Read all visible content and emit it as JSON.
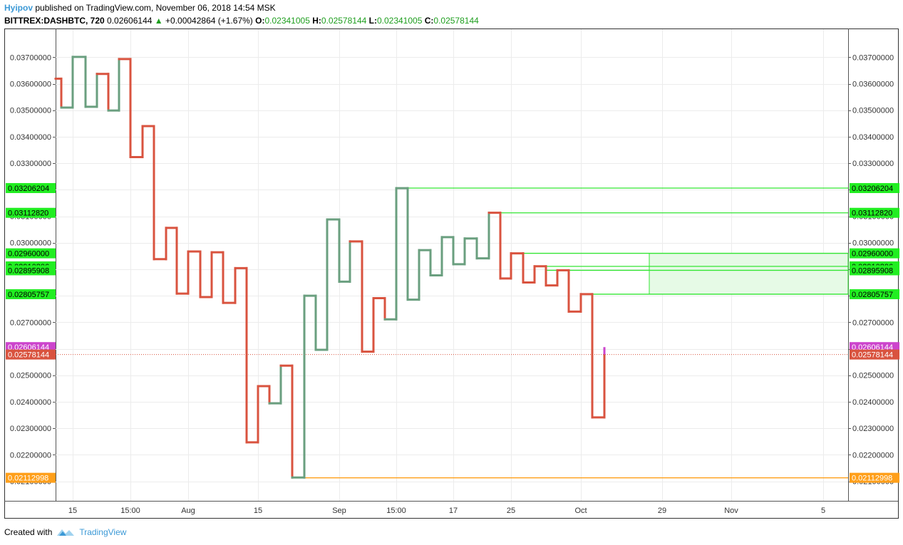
{
  "header": {
    "author": "Hyipov",
    "published_text": "published on TradingView.com, November 06, 2018 14:54 MSK",
    "symbol": "BITTREX:DASHBTC, 720",
    "last": "0.02606144",
    "change": "+0.00042864 (+1.67%)",
    "o_label": "O:",
    "o_value": "0.02341005",
    "h_label": "H:",
    "h_value": "0.02578144",
    "l_label": "L:",
    "l_value": "0.02341005",
    "c_label": "C:",
    "c_value": "0.02578144"
  },
  "footer": {
    "created_with": "Created with",
    "brand": "TradingView"
  },
  "colors": {
    "up": "#6a9f7f",
    "down": "#d9533f",
    "level": "#33e633",
    "zone_fill": "#e6fae6",
    "support": "#ff9f1a",
    "last_price": "#cc44cc",
    "close_price": "#d9533f",
    "badge_green": "#22ee22"
  },
  "chart_data": {
    "type": "line",
    "style": "kagi",
    "ylim": [
      0.021,
      0.0375
    ],
    "y_ticks": [
      "0.03700000",
      "0.03600000",
      "0.03500000",
      "0.03400000",
      "0.03300000",
      "0.03200000",
      "0.03100000",
      "0.03000000",
      "0.02900000",
      "0.02800000",
      "0.02700000",
      "0.02600000",
      "0.02500000",
      "0.02400000",
      "0.02300000",
      "0.02200000",
      "0.02100000"
    ],
    "x_ticks": [
      "15",
      "15:00",
      "Aug",
      "15",
      "Sep",
      "15:00",
      "17",
      "25",
      "Oct",
      "29",
      "Nov",
      "5"
    ],
    "kagi": {
      "start": 0.03619,
      "lines": [
        {
          "x_label": "",
          "to": 0.0351,
          "trend": "down"
        },
        {
          "x_label": "",
          "to": 0.03701,
          "trend": "up"
        },
        {
          "x_label": "",
          "to": 0.03513,
          "trend": "up"
        },
        {
          "x_label": "",
          "to": 0.03637,
          "trend": "up"
        },
        {
          "x_label": "",
          "to": 0.03499,
          "trend": "down"
        },
        {
          "x_label": "",
          "to": 0.03693,
          "trend": "up"
        },
        {
          "x_label": "",
          "to": 0.03323,
          "trend": "down"
        },
        {
          "x_label": "",
          "to": 0.0344,
          "trend": "down"
        },
        {
          "x_label": "",
          "to": 0.02938,
          "trend": "down"
        },
        {
          "x_label": "",
          "to": 0.03056,
          "trend": "down"
        },
        {
          "x_label": "",
          "to": 0.02808,
          "trend": "down"
        },
        {
          "x_label": "",
          "to": 0.02967,
          "trend": "down"
        },
        {
          "x_label": "",
          "to": 0.02795,
          "trend": "down"
        },
        {
          "x_label": "",
          "to": 0.02964,
          "trend": "down"
        },
        {
          "x_label": "",
          "to": 0.02773,
          "trend": "down"
        },
        {
          "x_label": "",
          "to": 0.02904,
          "trend": "down"
        },
        {
          "x_label": "",
          "to": 0.02247,
          "trend": "down"
        },
        {
          "x_label": "",
          "to": 0.02459,
          "trend": "down"
        },
        {
          "x_label": "",
          "to": 0.02394,
          "trend": "down"
        },
        {
          "x_label": "",
          "to": 0.02536,
          "trend": "up"
        },
        {
          "x_label": "",
          "to": 0.02114,
          "trend": "down"
        },
        {
          "x_label": "",
          "to": 0.028,
          "trend": "up"
        },
        {
          "x_label": "",
          "to": 0.02596,
          "trend": "up"
        },
        {
          "x_label": "",
          "to": 0.03088,
          "trend": "up"
        },
        {
          "x_label": "",
          "to": 0.02853,
          "trend": "up"
        },
        {
          "x_label": "",
          "to": 0.03005,
          "trend": "up"
        },
        {
          "x_label": "",
          "to": 0.02589,
          "trend": "down"
        },
        {
          "x_label": "",
          "to": 0.02791,
          "trend": "down"
        },
        {
          "x_label": "",
          "to": 0.02711,
          "trend": "down"
        },
        {
          "x_label": "",
          "to": 0.03206,
          "trend": "up"
        },
        {
          "x_label": "",
          "to": 0.02785,
          "trend": "up"
        },
        {
          "x_label": "",
          "to": 0.02972,
          "trend": "up"
        },
        {
          "x_label": "",
          "to": 0.02877,
          "trend": "up"
        },
        {
          "x_label": "",
          "to": 0.03021,
          "trend": "up"
        },
        {
          "x_label": "",
          "to": 0.02919,
          "trend": "up"
        },
        {
          "x_label": "",
          "to": 0.03016,
          "trend": "up"
        },
        {
          "x_label": "",
          "to": 0.02941,
          "trend": "up"
        },
        {
          "x_label": "",
          "to": 0.03113,
          "trend": "up"
        },
        {
          "x_label": "",
          "to": 0.02865,
          "trend": "down"
        },
        {
          "x_label": "",
          "to": 0.0296,
          "trend": "down"
        },
        {
          "x_label": "",
          "to": 0.0285,
          "trend": "down"
        },
        {
          "x_label": "",
          "to": 0.02911,
          "trend": "down"
        },
        {
          "x_label": "",
          "to": 0.02839,
          "trend": "down"
        },
        {
          "x_label": "",
          "to": 0.02896,
          "trend": "down"
        },
        {
          "x_label": "",
          "to": 0.0274,
          "trend": "down"
        },
        {
          "x_label": "",
          "to": 0.02806,
          "trend": "down"
        },
        {
          "x_label": "",
          "to": 0.02341,
          "trend": "down"
        },
        {
          "x_label": "",
          "to": 0.02578,
          "trend": "down"
        }
      ]
    },
    "horizontal_levels": [
      {
        "label": "0.03206204",
        "value": 0.03206204,
        "kind": "resistance"
      },
      {
        "label": "0.03112820",
        "value": 0.0311282,
        "kind": "resistance"
      },
      {
        "label": "0.02960000",
        "value": 0.0296,
        "kind": "zone"
      },
      {
        "label": "0.02910806",
        "value": 0.02910806,
        "kind": "resistance"
      },
      {
        "label": "0.02895908",
        "value": 0.02895908,
        "kind": "resistance"
      },
      {
        "label": "0.02805757",
        "value": 0.02805757,
        "kind": "zone"
      },
      {
        "label": "0.02112998",
        "value": 0.02112998,
        "kind": "support"
      }
    ],
    "last_price": {
      "label": "0.02606144",
      "value": 0.02606144
    },
    "close_price": {
      "label": "0.02578144",
      "value": 0.02578144
    }
  }
}
